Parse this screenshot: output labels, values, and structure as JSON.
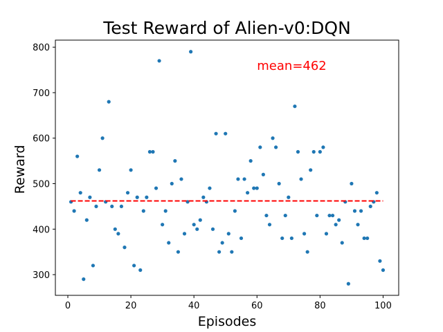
{
  "chart_data": {
    "type": "scatter",
    "title": "Test Reward of Alien-v0:DQN",
    "xlabel": "Episodes",
    "ylabel": "Reward",
    "xlim": [
      -3.95,
      104.95
    ],
    "ylim": [
      254.5,
      815.5
    ],
    "x_ticks": [
      0,
      20,
      40,
      60,
      80,
      100
    ],
    "y_ticks": [
      300,
      400,
      500,
      600,
      700,
      800
    ],
    "grid": false,
    "point_color": "#1f77b4",
    "mean_line": {
      "value": 462,
      "color": "#ff0000",
      "style": "dashed",
      "x_range": [
        1,
        100
      ]
    },
    "annotation": {
      "text": "mean=462",
      "color": "#ff0000"
    },
    "x": [
      1,
      2,
      3,
      4,
      5,
      6,
      7,
      8,
      9,
      10,
      11,
      12,
      13,
      14,
      15,
      16,
      17,
      18,
      19,
      20,
      21,
      22,
      23,
      24,
      25,
      26,
      27,
      28,
      29,
      30,
      31,
      32,
      33,
      34,
      35,
      36,
      37,
      38,
      39,
      40,
      41,
      42,
      43,
      44,
      45,
      46,
      47,
      48,
      49,
      50,
      51,
      52,
      53,
      54,
      55,
      56,
      57,
      58,
      59,
      60,
      61,
      62,
      63,
      64,
      65,
      66,
      67,
      68,
      69,
      70,
      71,
      72,
      73,
      74,
      75,
      76,
      77,
      78,
      79,
      80,
      81,
      82,
      83,
      84,
      85,
      86,
      87,
      88,
      89,
      90,
      91,
      92,
      93,
      94,
      95,
      96,
      97,
      98,
      99,
      100
    ],
    "y": [
      460,
      440,
      560,
      480,
      290,
      420,
      470,
      320,
      450,
      530,
      600,
      460,
      680,
      450,
      400,
      390,
      450,
      360,
      480,
      530,
      320,
      470,
      310,
      440,
      470,
      570,
      570,
      490,
      770,
      410,
      440,
      370,
      500,
      550,
      350,
      510,
      390,
      460,
      790,
      410,
      400,
      420,
      470,
      460,
      490,
      400,
      610,
      350,
      370,
      610,
      390,
      350,
      440,
      510,
      380,
      510,
      480,
      550,
      490,
      490,
      580,
      520,
      430,
      410,
      600,
      580,
      500,
      380,
      430,
      470,
      380,
      670,
      570,
      510,
      390,
      350,
      530,
      570,
      430,
      570,
      580,
      390,
      430,
      430,
      410,
      420,
      370,
      460,
      280,
      500,
      440,
      410,
      440,
      380,
      380,
      450,
      460,
      480,
      330,
      310
    ]
  }
}
